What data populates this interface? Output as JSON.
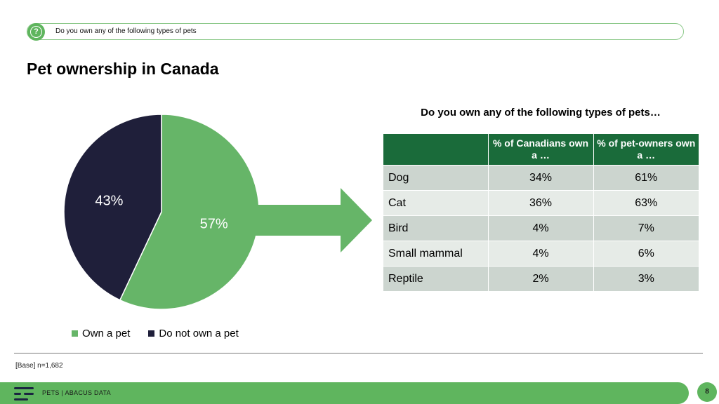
{
  "header": {
    "question": "Do you own any of the following types of pets",
    "question_icon": "?",
    "page_title": "Pet ownership in Canada"
  },
  "chart_data": [
    {
      "type": "pie",
      "categories": [
        "Own a pet",
        "Do not own a pet"
      ],
      "values": [
        57,
        43
      ],
      "labels": [
        "57%",
        "43%"
      ],
      "colors": [
        "#66b568",
        "#1f1f3a"
      ],
      "legend": "bottom"
    },
    {
      "type": "table",
      "title": "Do you own any of the following types of pets…",
      "columns": [
        "",
        "% of Canadians own a …",
        "% of pet-owners own a …"
      ],
      "rows": [
        [
          "Dog",
          "34%",
          "61%"
        ],
        [
          "Cat",
          "36%",
          "63%"
        ],
        [
          "Bird",
          "4%",
          "7%"
        ],
        [
          "Small mammal",
          "4%",
          "6%"
        ],
        [
          "Reptile",
          "2%",
          "3%"
        ]
      ]
    }
  ],
  "legend": {
    "items": [
      {
        "label": "Own a pet",
        "color": "#66b568"
      },
      {
        "label": "Do not own a pet",
        "color": "#1f1f3a"
      }
    ]
  },
  "base_note": "[Base] n=1,682",
  "footer": {
    "text": "PETS | ABACUS DATA",
    "page_number": "8"
  },
  "colors": {
    "accent_green": "#5fb55e",
    "table_header": "#1a6b3a",
    "navy": "#1f1f3a"
  }
}
